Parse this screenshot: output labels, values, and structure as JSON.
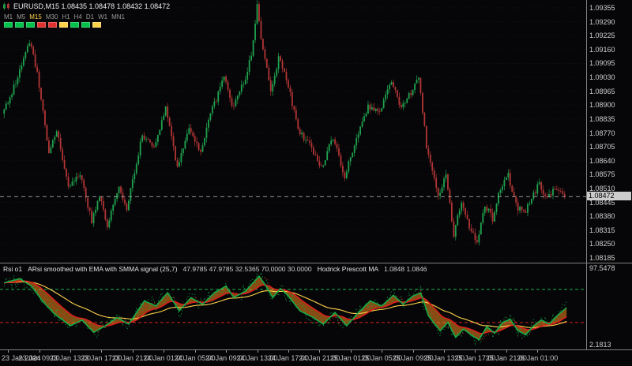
{
  "header": {
    "symbol_line": "EURUSD,M15 1.08435 1.08478 1.08432 1.08472"
  },
  "tf_panel": {
    "timeframes": [
      "M1",
      "M5",
      "M15",
      "M30",
      "H1",
      "H4",
      "D1",
      "W1",
      "MN1"
    ],
    "active": "M15",
    "status_colors": [
      "#00c24a",
      "#00c24a",
      "#00c24a",
      "#e33030",
      "#e33030",
      "#ffd24a",
      "#00c24a",
      "#00c24a",
      "#ffd24a"
    ]
  },
  "rsi_panel": {
    "name": "Rsi o1",
    "title": "ARsi smoothed with EMA with SMMA signal (25,7)",
    "values": "47.9785 47.9785 32.5365 70.0000 30.0000",
    "hp_title": "Hodrick Prescott MA",
    "hp_values": "1.0848 1.0846",
    "scale_max": "97.5478",
    "scale_min": "2.1813"
  },
  "price_axis": {
    "current_tag": "1.08472"
  },
  "colors": {
    "bull": "#1fa24e",
    "bear": "#b23535",
    "rsi_green": "#12b04a",
    "rsi_red": "#e01c1c",
    "rsi_yellow": "#ffd24a",
    "ribbon": "rgba(255,150,30,0.5)",
    "level_up": "#1fae4f",
    "level_down": "#d42222",
    "grid": "rgba(255,255,255,0.07)",
    "price_line": "#c0c0c0"
  },
  "chart_data": [
    {
      "type": "candlestick",
      "symbol": "EURUSD",
      "timeframe": "M15",
      "open": "1.08435",
      "high": "1.08478",
      "low": "1.08432",
      "close": "1.08472",
      "current_price": 1.08472,
      "ylim": [
        1.08185,
        1.09355
      ],
      "y_axis_labels": [
        "1.09355",
        "1.09290",
        "1.09225",
        "1.09160",
        "1.09095",
        "1.09030",
        "1.08965",
        "1.08900",
        "1.08835",
        "1.08770",
        "1.08705",
        "1.08640",
        "1.08575",
        "1.08510",
        "1.08445",
        "1.08380",
        "1.08315",
        "1.08250",
        "1.08185"
      ],
      "x_axis_labels": [
        "23 Jan 2024",
        "23 Jan 09:00",
        "23 Jan 13:00",
        "23 Jan 17:00",
        "23 Jan 21:00",
        "24 Jan 01:00",
        "24 Jan 05:00",
        "24 Jan 09:00",
        "24 Jan 13:00",
        "24 Jan 17:00",
        "24 Jan 21:00",
        "25 Jan 01:00",
        "25 Jan 05:00",
        "25 Jan 09:00",
        "25 Jan 13:00",
        "25 Jan 17:00",
        "25 Jan 21:00",
        "26 Jan 01:00"
      ],
      "x_label_first": 2,
      "x_label_step": 16,
      "candles_total": 289,
      "price_waypoints": [
        [
          0,
          1.0886
        ],
        [
          5,
          1.0896
        ],
        [
          10,
          1.0908
        ],
        [
          14,
          1.092
        ],
        [
          18,
          1.0905
        ],
        [
          24,
          1.0868
        ],
        [
          28,
          1.0878
        ],
        [
          34,
          1.0852
        ],
        [
          40,
          1.0858
        ],
        [
          46,
          1.0836
        ],
        [
          50,
          1.0847
        ],
        [
          54,
          1.0834
        ],
        [
          60,
          1.0851
        ],
        [
          64,
          1.0842
        ],
        [
          72,
          1.0876
        ],
        [
          78,
          1.0869
        ],
        [
          84,
          1.0888
        ],
        [
          90,
          1.0861
        ],
        [
          96,
          1.0878
        ],
        [
          102,
          1.0869
        ],
        [
          108,
          1.0888
        ],
        [
          114,
          1.0903
        ],
        [
          118,
          1.0889
        ],
        [
          124,
          1.09
        ],
        [
          128,
          1.0913
        ],
        [
          131,
          1.0936
        ],
        [
          134,
          1.0915
        ],
        [
          138,
          1.0897
        ],
        [
          142,
          1.0912
        ],
        [
          146,
          1.0903
        ],
        [
          152,
          1.0879
        ],
        [
          158,
          1.0871
        ],
        [
          164,
          1.0861
        ],
        [
          170,
          1.0875
        ],
        [
          176,
          1.0857
        ],
        [
          182,
          1.0874
        ],
        [
          188,
          1.089
        ],
        [
          194,
          1.0886
        ],
        [
          200,
          1.0902
        ],
        [
          205,
          1.0889
        ],
        [
          210,
          1.0896
        ],
        [
          214,
          1.0903
        ],
        [
          218,
          1.0871
        ],
        [
          224,
          1.0847
        ],
        [
          228,
          1.0857
        ],
        [
          232,
          1.0829
        ],
        [
          236,
          1.0845
        ],
        [
          240,
          1.0833
        ],
        [
          244,
          1.0825
        ],
        [
          248,
          1.0843
        ],
        [
          252,
          1.0837
        ],
        [
          256,
          1.0851
        ],
        [
          260,
          1.0857
        ],
        [
          264,
          1.0843
        ],
        [
          268,
          1.0839
        ],
        [
          272,
          1.0847
        ],
        [
          276,
          1.0853
        ],
        [
          280,
          1.0846
        ],
        [
          284,
          1.0851
        ],
        [
          289,
          1.08472
        ]
      ]
    },
    {
      "type": "line",
      "name": "ARsi smoothed with EMA with SMMA signal",
      "params": "(25,7)",
      "current": 47.9785,
      "levels": {
        "overbought": 70,
        "oversold": 30
      },
      "scale": {
        "max": 97.5478,
        "min": 2.1813
      },
      "rsi_waypoints": [
        [
          0,
          78
        ],
        [
          8,
          83
        ],
        [
          14,
          74
        ],
        [
          20,
          55
        ],
        [
          26,
          40
        ],
        [
          34,
          26
        ],
        [
          40,
          33
        ],
        [
          46,
          18
        ],
        [
          52,
          26
        ],
        [
          58,
          36
        ],
        [
          64,
          28
        ],
        [
          72,
          56
        ],
        [
          78,
          50
        ],
        [
          84,
          66
        ],
        [
          90,
          44
        ],
        [
          96,
          60
        ],
        [
          102,
          52
        ],
        [
          108,
          66
        ],
        [
          114,
          74
        ],
        [
          118,
          60
        ],
        [
          124,
          68
        ],
        [
          131,
          86
        ],
        [
          134,
          76
        ],
        [
          138,
          60
        ],
        [
          142,
          71
        ],
        [
          146,
          62
        ],
        [
          152,
          44
        ],
        [
          158,
          37
        ],
        [
          164,
          28
        ],
        [
          170,
          42
        ],
        [
          176,
          26
        ],
        [
          182,
          42
        ],
        [
          188,
          56
        ],
        [
          194,
          50
        ],
        [
          200,
          63
        ],
        [
          205,
          52
        ],
        [
          210,
          62
        ],
        [
          214,
          66
        ],
        [
          218,
          38
        ],
        [
          224,
          20
        ],
        [
          228,
          30
        ],
        [
          232,
          12
        ],
        [
          236,
          22
        ],
        [
          240,
          15
        ],
        [
          244,
          9
        ],
        [
          248,
          25
        ],
        [
          252,
          17
        ],
        [
          256,
          30
        ],
        [
          260,
          34
        ],
        [
          264,
          20
        ],
        [
          268,
          15
        ],
        [
          272,
          26
        ],
        [
          276,
          33
        ],
        [
          280,
          28
        ],
        [
          284,
          38
        ],
        [
          289,
          48
        ]
      ]
    }
  ]
}
